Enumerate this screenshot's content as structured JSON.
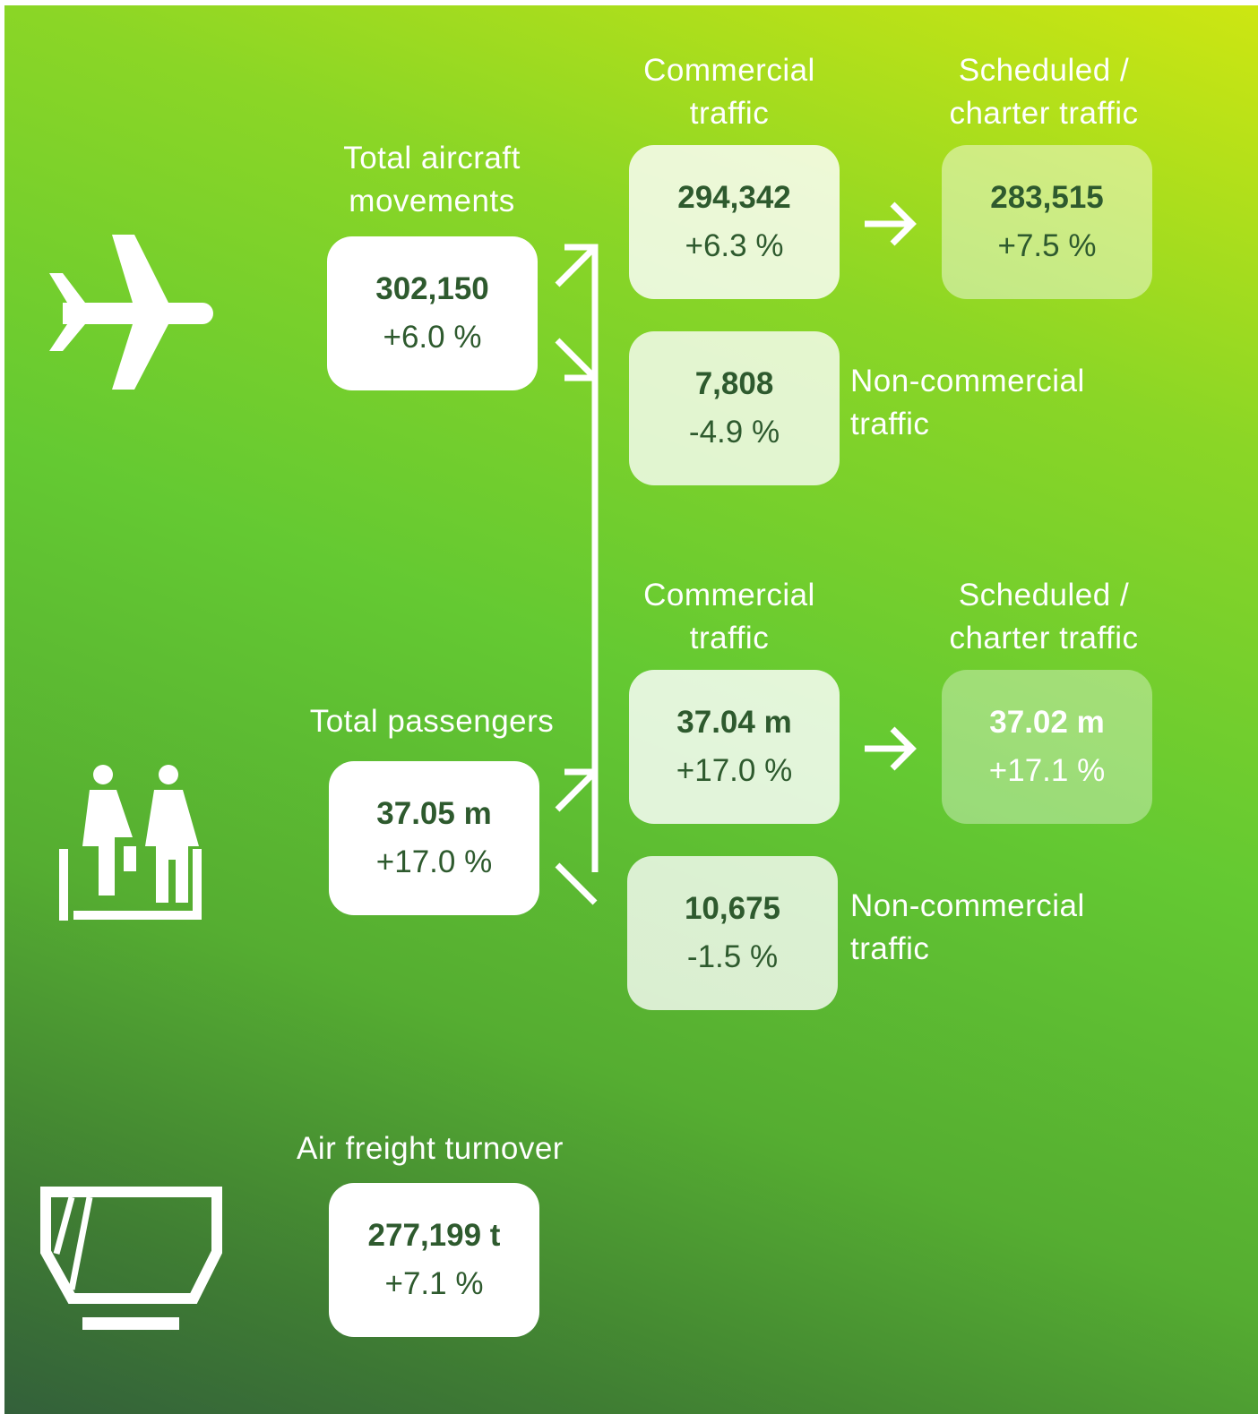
{
  "sections": [
    {
      "total": {
        "label": "Total aircraft\nmovements",
        "value": "302,150",
        "change": "+6.0 %"
      },
      "commercial": {
        "label": "Commercial\ntraffic",
        "value": "294,342",
        "change": "+6.3 %"
      },
      "scheduled": {
        "label": "Scheduled /\ncharter traffic",
        "value": "283,515",
        "change": "+7.5 %"
      },
      "non_commercial": {
        "label": "Non-commercial\ntraffic",
        "value": "7,808",
        "change": "-4.9 %"
      }
    },
    {
      "total": {
        "label": "Total passengers",
        "value": "37.05 m",
        "change": "+17.0 %"
      },
      "commercial": {
        "label": "Commercial\ntraffic",
        "value": "37.04 m",
        "change": "+17.0 %"
      },
      "scheduled": {
        "label": "Scheduled /\ncharter traffic",
        "value": "37.02 m",
        "change": "+17.1 %"
      },
      "non_commercial": {
        "label": "Non-commercial\ntraffic",
        "value": "10,675",
        "change": "-1.5 %"
      }
    }
  ],
  "freight": {
    "label": "Air freight turnover",
    "value": "277,199 t",
    "change": "+7.1 %"
  }
}
